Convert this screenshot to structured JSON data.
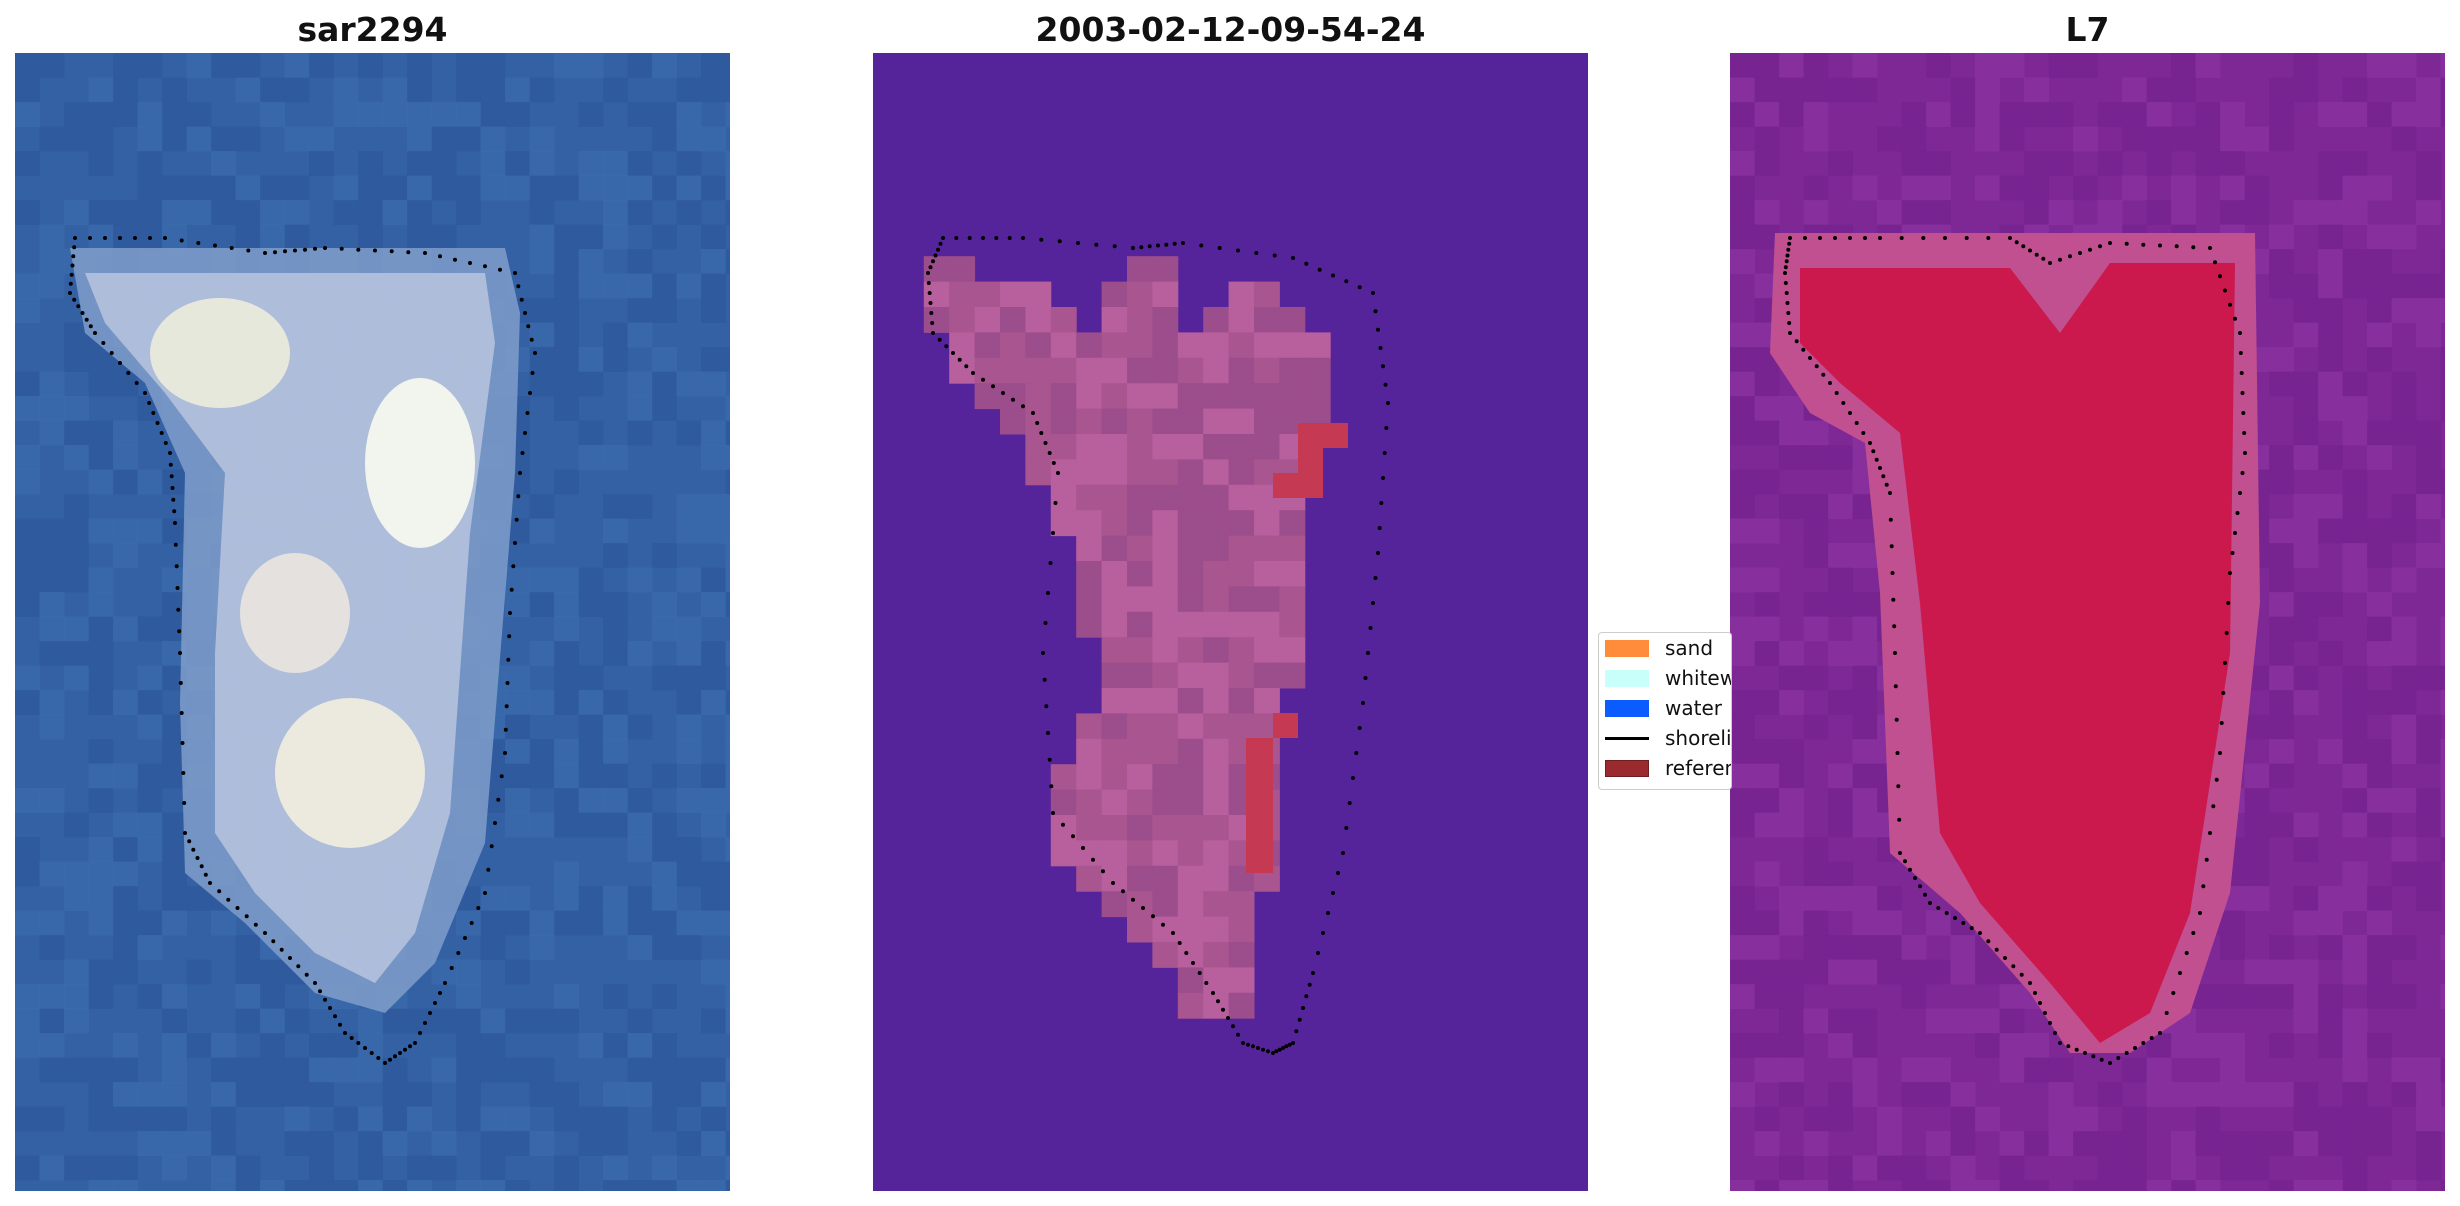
{
  "panels": {
    "left": {
      "title": "sar2294"
    },
    "middle": {
      "title": "2003-02-12-09-54-24"
    },
    "right": {
      "title": "L7"
    }
  },
  "legend": {
    "items": [
      {
        "label": "sand",
        "color": "#ff8c3a"
      },
      {
        "label": "whitewater",
        "color": "#c8fffb"
      },
      {
        "label": "water",
        "color": "#0a5cff"
      },
      {
        "label": "shoreline",
        "color": "#000000"
      },
      {
        "label": "reference",
        "color": "#9b2a2e"
      }
    ]
  },
  "colors": {
    "water_blue": "#3361a4",
    "classified_background": "#55249a",
    "classified_land": "#b25c99",
    "reference_patch": "#c53a52",
    "index_background": "#7e2896",
    "index_high": "#cc1144"
  }
}
